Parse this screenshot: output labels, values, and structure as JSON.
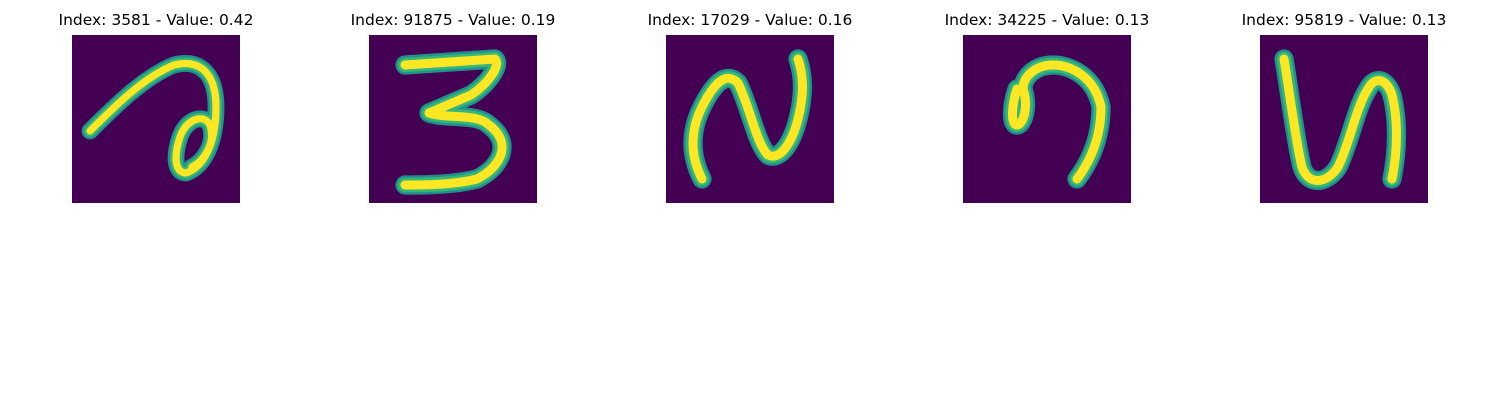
{
  "colors": {
    "background": "#440154",
    "stroke_core": "#fde725",
    "stroke_mid": "#35b779",
    "stroke_edge": "#21918c"
  },
  "panels": [
    {
      "title": "Index: 3581 - Value: 0.42",
      "glyph": "a-loop"
    },
    {
      "title": "Index: 91875 - Value: 0.19",
      "glyph": "three"
    },
    {
      "title": "Index: 17029 - Value: 0.16",
      "glyph": "n-shape"
    },
    {
      "title": "Index: 34225 - Value: 0.13",
      "glyph": "nine-loop"
    },
    {
      "title": "Index: 95819 - Value: 0.13",
      "glyph": "u-n-shape"
    }
  ],
  "chart_data": {
    "type": "heatmap",
    "title": "",
    "images": [
      {
        "index": 3581,
        "value": 0.42
      },
      {
        "index": 91875,
        "value": 0.19
      },
      {
        "index": 17029,
        "value": 0.16
      },
      {
        "index": 34225,
        "value": 0.13
      },
      {
        "index": 95819,
        "value": 0.13
      }
    ]
  }
}
